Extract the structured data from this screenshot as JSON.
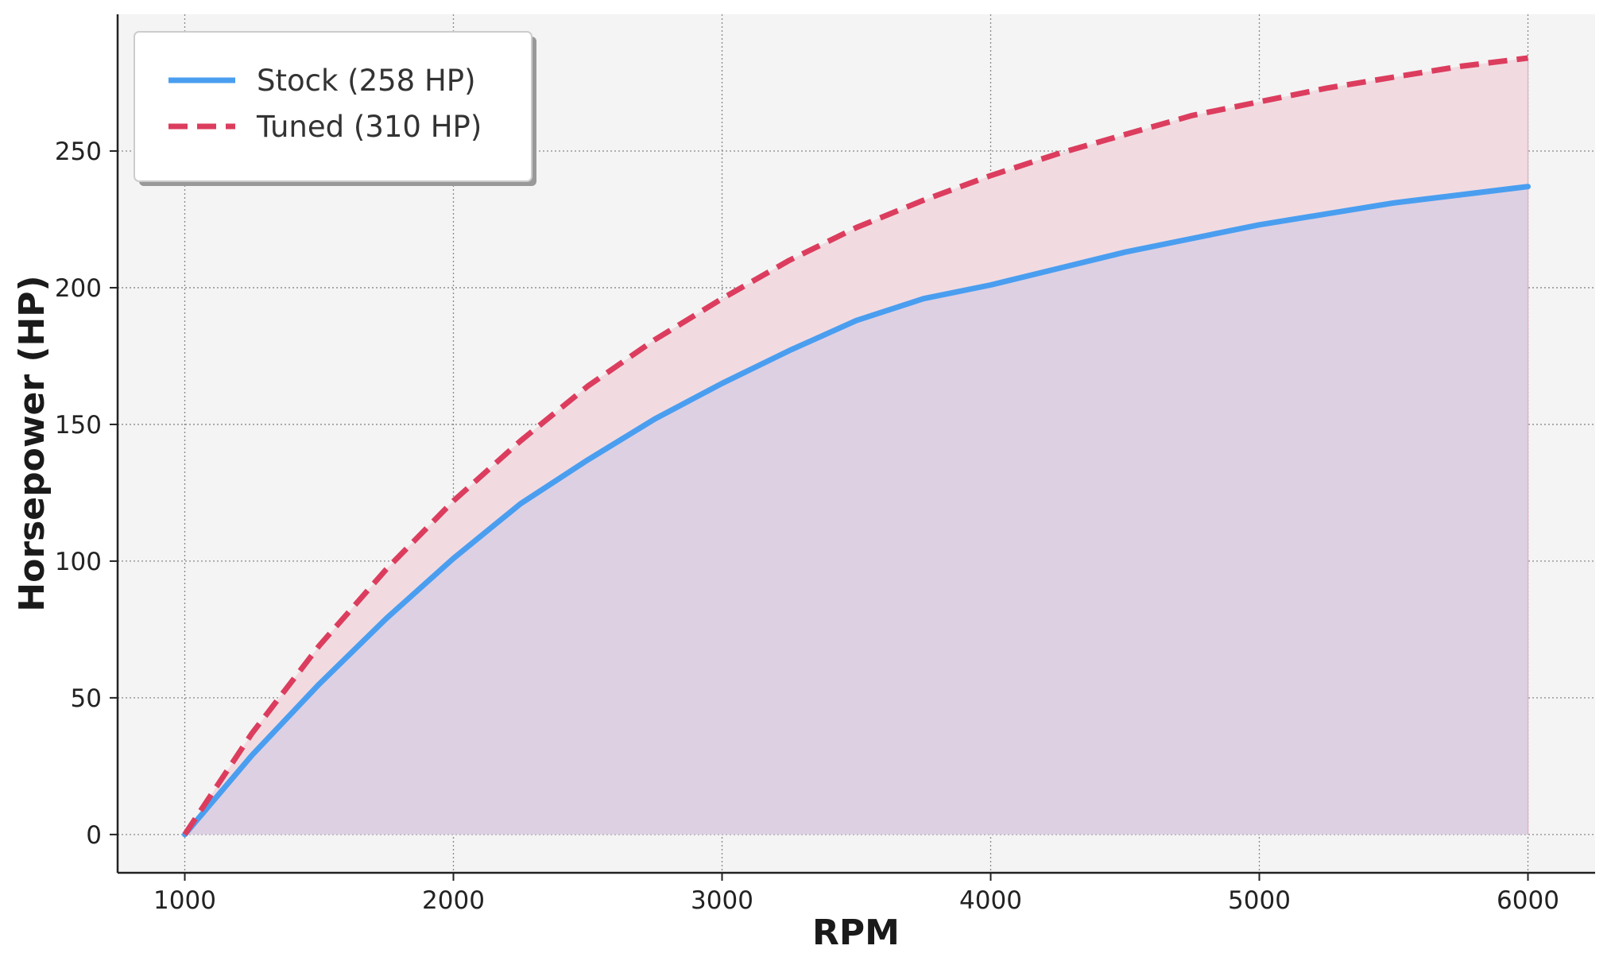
{
  "chart_data": {
    "type": "line",
    "title": "",
    "xlabel": "RPM",
    "ylabel": "Horsepower (HP)",
    "xlim": [
      750,
      6250
    ],
    "ylim": [
      -14,
      300
    ],
    "xticks": [
      1000,
      2000,
      3000,
      4000,
      5000,
      6000
    ],
    "yticks": [
      0,
      50,
      100,
      150,
      200,
      250
    ],
    "grid": true,
    "legend_position": "top-left",
    "x": [
      1000,
      1250,
      1500,
      1750,
      2000,
      2250,
      2500,
      2750,
      3000,
      3250,
      3500,
      3750,
      4000,
      4250,
      4500,
      4750,
      5000,
      5250,
      5500,
      5750,
      6000
    ],
    "series": [
      {
        "name": "Stock (258 HP)",
        "color": "#4a9ef0",
        "style": "solid",
        "fill": "#ddd0e3",
        "values": [
          0,
          29,
          55,
          79,
          101,
          121,
          137,
          152,
          165,
          177,
          188,
          196,
          201,
          207,
          213,
          218,
          223,
          227,
          231,
          234,
          237
        ]
      },
      {
        "name": "Tuned (310 HP)",
        "color": "#dc3d5e",
        "style": "dashed",
        "fill": "#f1dbe1",
        "values": [
          0,
          37,
          69,
          97,
          122,
          144,
          164,
          181,
          196,
          210,
          222,
          232,
          241,
          249,
          256,
          263,
          268,
          273,
          277,
          281,
          284
        ]
      }
    ],
    "colors": {
      "plot_background": "#f4f4f4",
      "grid": "#888888",
      "axis": "#222222"
    }
  }
}
